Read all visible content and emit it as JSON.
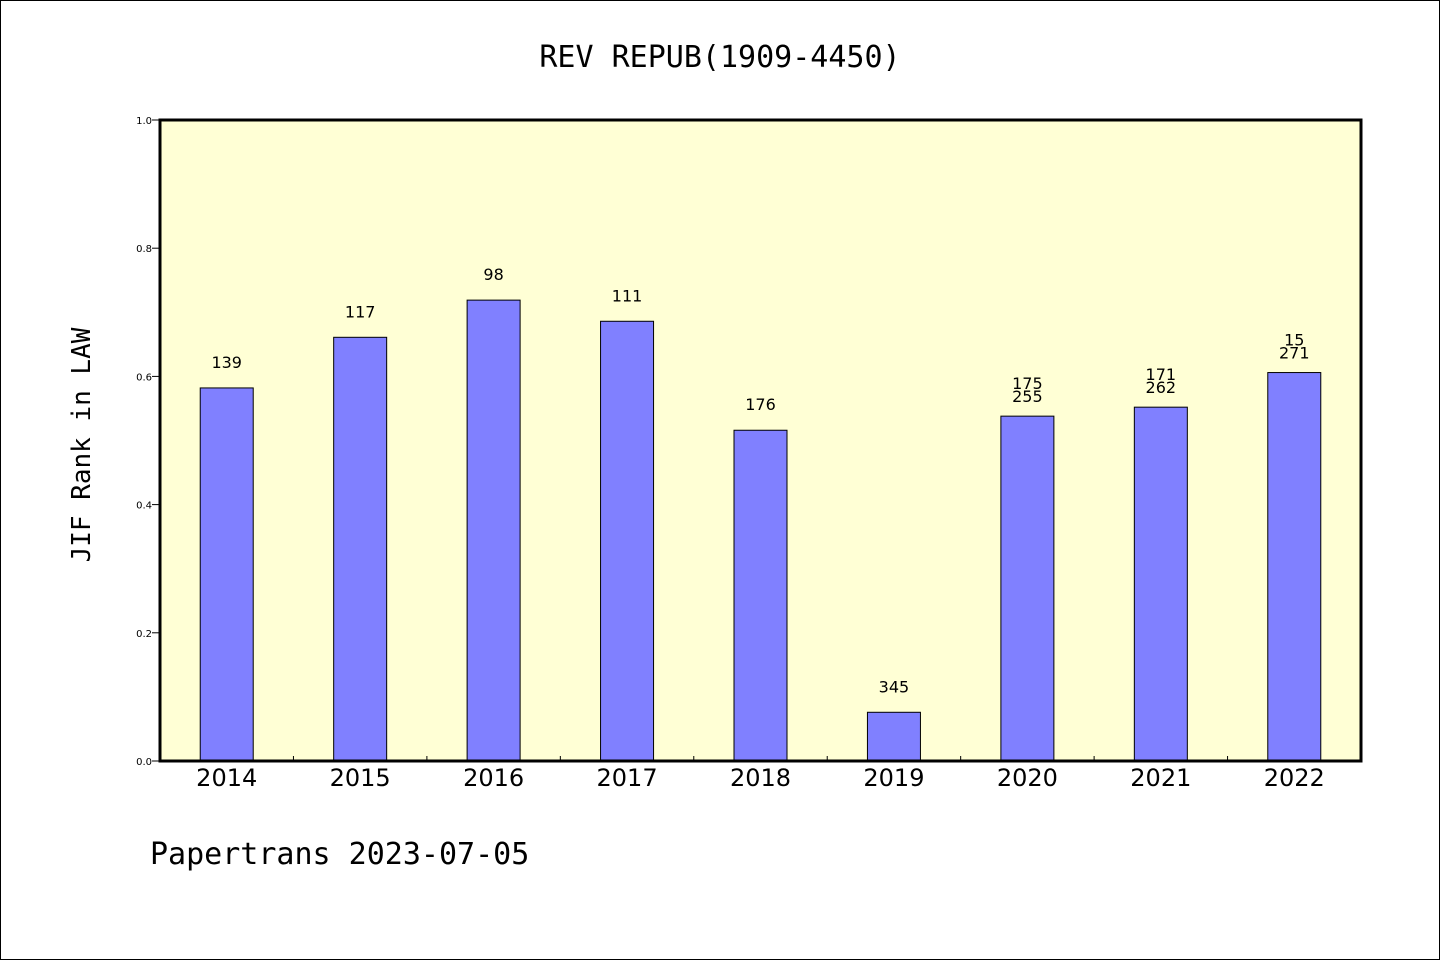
{
  "chart_data": {
    "type": "bar",
    "title": "REV REPUB(1909-4450)",
    "xlabel": "",
    "ylabel": "JIF Rank in LAW",
    "ylim": [
      0,
      1.0
    ],
    "yticks": [
      "0.0",
      "0.2",
      "0.4",
      "0.6",
      "0.8",
      "1.0"
    ],
    "grid": false,
    "categories": [
      "2014",
      "2015",
      "2016",
      "2017",
      "2018",
      "2019",
      "2020",
      "2021",
      "2022"
    ],
    "values": [
      0.582,
      0.661,
      0.719,
      0.686,
      0.516,
      0.076,
      0.538,
      0.552,
      0.606
    ],
    "data_labels": [
      [
        "139"
      ],
      [
        "117"
      ],
      [
        "98"
      ],
      [
        "111"
      ],
      [
        "176"
      ],
      [
        "345"
      ],
      [
        "175",
        "255"
      ],
      [
        "171",
        "262"
      ],
      [
        "15",
        "271"
      ]
    ]
  },
  "footer": "Papertrans 2023-07-05",
  "colors": {
    "plot_background": "#ffffd5",
    "bar_fill": "#8080ff",
    "bar_stroke": "#000000"
  }
}
